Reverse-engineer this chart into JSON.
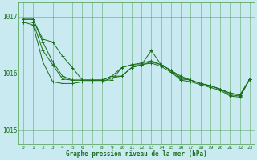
{
  "background_color": "#c8eaf0",
  "grid_color": "#4a9a4a",
  "line_color": "#1a6e1a",
  "xlabel": "Graphe pression niveau de la mer (hPa)",
  "xlim": [
    -0.5,
    23.5
  ],
  "ylim": [
    1014.75,
    1017.25
  ],
  "yticks": [
    1015,
    1016,
    1017
  ],
  "xticks": [
    0,
    1,
    2,
    3,
    4,
    5,
    6,
    7,
    8,
    9,
    10,
    11,
    12,
    13,
    14,
    15,
    16,
    17,
    18,
    19,
    20,
    21,
    22,
    23
  ],
  "series": [
    [
      1016.95,
      1016.95,
      1016.6,
      1016.55,
      1016.3,
      1016.1,
      1015.88,
      1015.88,
      1015.88,
      1015.88,
      1016.1,
      1016.15,
      1016.15,
      1016.2,
      1016.15,
      1016.05,
      1015.95,
      1015.88,
      1015.82,
      1015.78,
      1015.72,
      1015.65,
      1015.62,
      1015.9
    ],
    [
      1016.95,
      1016.95,
      1016.55,
      1016.2,
      1015.95,
      1015.88,
      1015.88,
      1015.88,
      1015.88,
      1015.95,
      1016.1,
      1016.15,
      1016.18,
      1016.22,
      1016.15,
      1016.05,
      1015.92,
      1015.88,
      1015.82,
      1015.78,
      1015.72,
      1015.65,
      1015.62,
      1015.9
    ],
    [
      1016.9,
      1016.9,
      1016.4,
      1016.15,
      1015.9,
      1015.88,
      1015.88,
      1015.88,
      1015.88,
      1015.95,
      1015.95,
      1016.1,
      1016.15,
      1016.4,
      1016.15,
      1016.05,
      1015.9,
      1015.88,
      1015.82,
      1015.78,
      1015.72,
      1015.62,
      1015.6,
      1015.9
    ],
    [
      1016.9,
      1016.85,
      1016.2,
      1015.85,
      1015.82,
      1015.82,
      1015.85,
      1015.85,
      1015.85,
      1015.92,
      1015.95,
      1016.1,
      1016.15,
      1016.18,
      1016.12,
      1016.02,
      1015.88,
      1015.85,
      1015.8,
      1015.75,
      1015.7,
      1015.6,
      1015.58,
      1015.9
    ]
  ]
}
